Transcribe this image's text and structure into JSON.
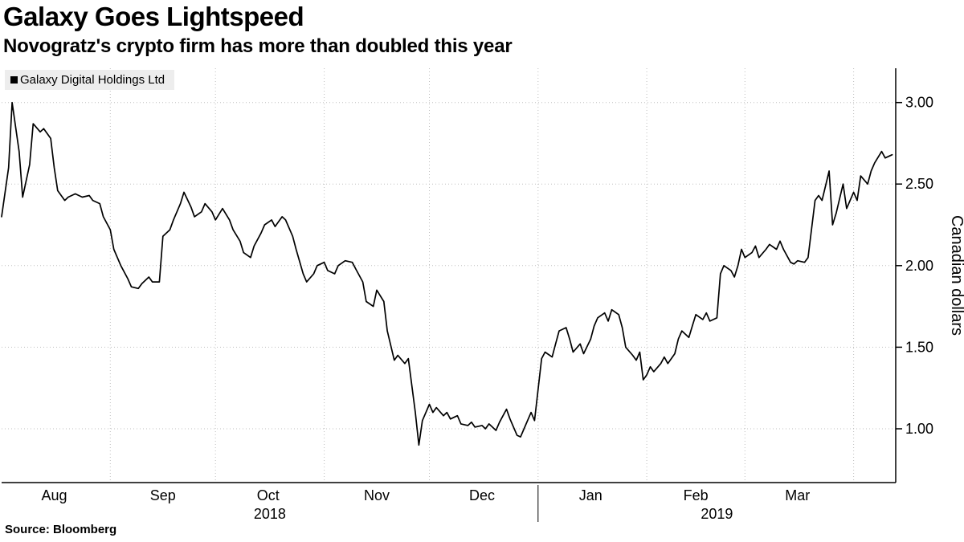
{
  "header": {
    "title": "Galaxy Goes Lightspeed",
    "subtitle": "Novogratz's crypto firm has more than doubled this year"
  },
  "source": {
    "label": "Source: Bloomberg"
  },
  "colors": {
    "line": "#000000",
    "grid": "#bfbfbf",
    "axis": "#000000",
    "text": "#000000",
    "legend_bg": "#ededed",
    "background": "#ffffff"
  },
  "chart_data": {
    "type": "line",
    "title": "Galaxy Goes Lightspeed",
    "subtitle": "Novogratz's crypto firm has more than doubled this year",
    "xlabel": "",
    "ylabel": "Canadian dollars",
    "ylim": [
      0.67,
      3.21
    ],
    "y_ticks": [
      1.0,
      1.5,
      2.0,
      2.5,
      3.0
    ],
    "grid": true,
    "legend_position": "top-left",
    "x_domain": [
      "2018-08-01",
      "2019-04-13"
    ],
    "x_month_gridlines": [
      "2018-09-01",
      "2018-10-01",
      "2018-11-01",
      "2018-12-01",
      "2019-01-01",
      "2019-02-01",
      "2019-03-01",
      "2019-04-01"
    ],
    "x_tick_labels": [
      {
        "label": "Aug",
        "date": "2018-08-16"
      },
      {
        "label": "Sep",
        "date": "2018-09-16"
      },
      {
        "label": "Oct",
        "date": "2018-10-16"
      },
      {
        "label": "Nov",
        "date": "2018-11-16"
      },
      {
        "label": "Dec",
        "date": "2018-12-16"
      },
      {
        "label": "Jan",
        "date": "2019-01-16"
      },
      {
        "label": "Feb",
        "date": "2019-02-15"
      },
      {
        "label": "Mar",
        "date": "2019-03-16"
      }
    ],
    "year_boundary": "2019-01-01",
    "year_labels": [
      {
        "label": "2018",
        "span": [
          "2018-08-01",
          "2019-01-01"
        ]
      },
      {
        "label": "2019",
        "span": [
          "2019-01-01",
          "2019-04-13"
        ]
      }
    ],
    "series": [
      {
        "name": "Galaxy Digital Holdings Ltd",
        "color": "#000000",
        "points": [
          [
            "2018-08-01",
            2.3
          ],
          [
            "2018-08-03",
            2.6
          ],
          [
            "2018-08-04",
            3.0
          ],
          [
            "2018-08-06",
            2.7
          ],
          [
            "2018-08-07",
            2.42
          ],
          [
            "2018-08-09",
            2.62
          ],
          [
            "2018-08-10",
            2.87
          ],
          [
            "2018-08-12",
            2.82
          ],
          [
            "2018-08-13",
            2.84
          ],
          [
            "2018-08-15",
            2.78
          ],
          [
            "2018-08-16",
            2.6
          ],
          [
            "2018-08-17",
            2.46
          ],
          [
            "2018-08-19",
            2.4
          ],
          [
            "2018-08-20",
            2.42
          ],
          [
            "2018-08-22",
            2.44
          ],
          [
            "2018-08-24",
            2.42
          ],
          [
            "2018-08-26",
            2.43
          ],
          [
            "2018-08-27",
            2.4
          ],
          [
            "2018-08-29",
            2.38
          ],
          [
            "2018-08-30",
            2.3
          ],
          [
            "2018-09-01",
            2.22
          ],
          [
            "2018-09-02",
            2.1
          ],
          [
            "2018-09-04",
            2.0
          ],
          [
            "2018-09-06",
            1.92
          ],
          [
            "2018-09-07",
            1.87
          ],
          [
            "2018-09-09",
            1.86
          ],
          [
            "2018-09-10",
            1.89
          ],
          [
            "2018-09-12",
            1.93
          ],
          [
            "2018-09-13",
            1.9
          ],
          [
            "2018-09-15",
            1.9
          ],
          [
            "2018-09-16",
            2.18
          ],
          [
            "2018-09-18",
            2.22
          ],
          [
            "2018-09-19",
            2.28
          ],
          [
            "2018-09-21",
            2.38
          ],
          [
            "2018-09-22",
            2.45
          ],
          [
            "2018-09-24",
            2.36
          ],
          [
            "2018-09-25",
            2.3
          ],
          [
            "2018-09-27",
            2.33
          ],
          [
            "2018-09-28",
            2.38
          ],
          [
            "2018-09-30",
            2.33
          ],
          [
            "2018-10-01",
            2.28
          ],
          [
            "2018-10-03",
            2.35
          ],
          [
            "2018-10-05",
            2.28
          ],
          [
            "2018-10-06",
            2.22
          ],
          [
            "2018-10-08",
            2.15
          ],
          [
            "2018-10-09",
            2.08
          ],
          [
            "2018-10-11",
            2.05
          ],
          [
            "2018-10-12",
            2.12
          ],
          [
            "2018-10-14",
            2.2
          ],
          [
            "2018-10-15",
            2.25
          ],
          [
            "2018-10-17",
            2.28
          ],
          [
            "2018-10-18",
            2.24
          ],
          [
            "2018-10-20",
            2.3
          ],
          [
            "2018-10-21",
            2.28
          ],
          [
            "2018-10-23",
            2.18
          ],
          [
            "2018-10-24",
            2.1
          ],
          [
            "2018-10-26",
            1.95
          ],
          [
            "2018-10-27",
            1.9
          ],
          [
            "2018-10-29",
            1.95
          ],
          [
            "2018-10-30",
            2.0
          ],
          [
            "2018-11-01",
            2.02
          ],
          [
            "2018-11-02",
            1.97
          ],
          [
            "2018-11-04",
            1.95
          ],
          [
            "2018-11-05",
            2.0
          ],
          [
            "2018-11-07",
            2.03
          ],
          [
            "2018-11-09",
            2.02
          ],
          [
            "2018-11-10",
            1.98
          ],
          [
            "2018-11-12",
            1.9
          ],
          [
            "2018-11-13",
            1.78
          ],
          [
            "2018-11-15",
            1.75
          ],
          [
            "2018-11-16",
            1.85
          ],
          [
            "2018-11-18",
            1.78
          ],
          [
            "2018-11-19",
            1.6
          ],
          [
            "2018-11-21",
            1.42
          ],
          [
            "2018-11-22",
            1.45
          ],
          [
            "2018-11-24",
            1.4
          ],
          [
            "2018-11-25",
            1.43
          ],
          [
            "2018-11-27",
            1.1
          ],
          [
            "2018-11-28",
            0.9
          ],
          [
            "2018-11-29",
            1.05
          ],
          [
            "2018-12-01",
            1.15
          ],
          [
            "2018-12-02",
            1.1
          ],
          [
            "2018-12-03",
            1.13
          ],
          [
            "2018-12-05",
            1.08
          ],
          [
            "2018-12-06",
            1.1
          ],
          [
            "2018-12-07",
            1.06
          ],
          [
            "2018-12-09",
            1.08
          ],
          [
            "2018-12-10",
            1.03
          ],
          [
            "2018-12-12",
            1.02
          ],
          [
            "2018-12-13",
            1.04
          ],
          [
            "2018-12-14",
            1.01
          ],
          [
            "2018-12-16",
            1.02
          ],
          [
            "2018-12-17",
            1.0
          ],
          [
            "2018-12-18",
            1.03
          ],
          [
            "2018-12-20",
            0.99
          ],
          [
            "2018-12-21",
            1.04
          ],
          [
            "2018-12-23",
            1.12
          ],
          [
            "2018-12-24",
            1.06
          ],
          [
            "2018-12-26",
            0.96
          ],
          [
            "2018-12-27",
            0.95
          ],
          [
            "2018-12-28",
            1.0
          ],
          [
            "2018-12-30",
            1.1
          ],
          [
            "2018-12-31",
            1.05
          ],
          [
            "2019-01-02",
            1.43
          ],
          [
            "2019-01-03",
            1.47
          ],
          [
            "2019-01-05",
            1.44
          ],
          [
            "2019-01-06",
            1.52
          ],
          [
            "2019-01-07",
            1.6
          ],
          [
            "2019-01-09",
            1.62
          ],
          [
            "2019-01-10",
            1.55
          ],
          [
            "2019-01-11",
            1.47
          ],
          [
            "2019-01-13",
            1.52
          ],
          [
            "2019-01-14",
            1.46
          ],
          [
            "2019-01-16",
            1.55
          ],
          [
            "2019-01-17",
            1.63
          ],
          [
            "2019-01-18",
            1.68
          ],
          [
            "2019-01-20",
            1.71
          ],
          [
            "2019-01-21",
            1.66
          ],
          [
            "2019-01-22",
            1.73
          ],
          [
            "2019-01-24",
            1.7
          ],
          [
            "2019-01-25",
            1.62
          ],
          [
            "2019-01-26",
            1.5
          ],
          [
            "2019-01-28",
            1.45
          ],
          [
            "2019-01-29",
            1.42
          ],
          [
            "2019-01-30",
            1.47
          ],
          [
            "2019-01-31",
            1.3
          ],
          [
            "2019-02-01",
            1.33
          ],
          [
            "2019-02-02",
            1.38
          ],
          [
            "2019-02-03",
            1.35
          ],
          [
            "2019-02-05",
            1.4
          ],
          [
            "2019-02-06",
            1.44
          ],
          [
            "2019-02-07",
            1.4
          ],
          [
            "2019-02-09",
            1.46
          ],
          [
            "2019-02-10",
            1.55
          ],
          [
            "2019-02-11",
            1.6
          ],
          [
            "2019-02-13",
            1.56
          ],
          [
            "2019-02-14",
            1.63
          ],
          [
            "2019-02-15",
            1.7
          ],
          [
            "2019-02-17",
            1.67
          ],
          [
            "2019-02-18",
            1.71
          ],
          [
            "2019-02-19",
            1.66
          ],
          [
            "2019-02-21",
            1.68
          ],
          [
            "2019-02-22",
            1.95
          ],
          [
            "2019-02-23",
            2.0
          ],
          [
            "2019-02-25",
            1.97
          ],
          [
            "2019-02-26",
            1.93
          ],
          [
            "2019-02-27",
            2.0
          ],
          [
            "2019-02-28",
            2.1
          ],
          [
            "2019-03-01",
            2.05
          ],
          [
            "2019-03-03",
            2.08
          ],
          [
            "2019-03-04",
            2.12
          ],
          [
            "2019-03-05",
            2.05
          ],
          [
            "2019-03-07",
            2.1
          ],
          [
            "2019-03-08",
            2.13
          ],
          [
            "2019-03-10",
            2.1
          ],
          [
            "2019-03-11",
            2.15
          ],
          [
            "2019-03-12",
            2.1
          ],
          [
            "2019-03-14",
            2.02
          ],
          [
            "2019-03-15",
            2.01
          ],
          [
            "2019-03-16",
            2.03
          ],
          [
            "2019-03-18",
            2.02
          ],
          [
            "2019-03-19",
            2.05
          ],
          [
            "2019-03-21",
            2.4
          ],
          [
            "2019-03-22",
            2.43
          ],
          [
            "2019-03-23",
            2.4
          ],
          [
            "2019-03-25",
            2.58
          ],
          [
            "2019-03-26",
            2.25
          ],
          [
            "2019-03-27",
            2.32
          ],
          [
            "2019-03-29",
            2.5
          ],
          [
            "2019-03-30",
            2.35
          ],
          [
            "2019-04-01",
            2.45
          ],
          [
            "2019-04-02",
            2.4
          ],
          [
            "2019-04-03",
            2.55
          ],
          [
            "2019-04-05",
            2.5
          ],
          [
            "2019-04-06",
            2.58
          ],
          [
            "2019-04-07",
            2.63
          ],
          [
            "2019-04-09",
            2.7
          ],
          [
            "2019-04-10",
            2.66
          ],
          [
            "2019-04-12",
            2.68
          ]
        ]
      }
    ]
  }
}
